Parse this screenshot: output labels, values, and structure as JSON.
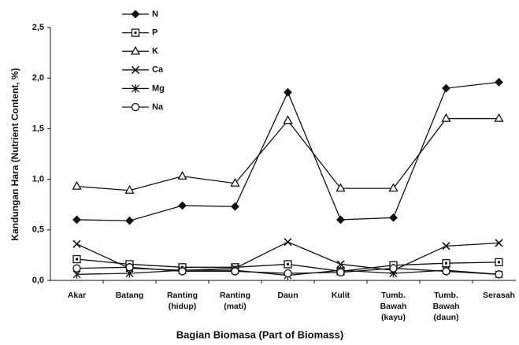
{
  "chart_data": {
    "type": "line",
    "x_label": "Bagian Biomasa (Part of Biomass)",
    "y_label": "Kandungan Hara (Nutrient Content, %)",
    "categories": [
      "Akar",
      "Batang",
      "Ranting\n(hidup)",
      "Ranting\n(mati)",
      "Daun",
      "Kulit",
      "Tumb.\nBawah\n(kayu)",
      "Tumb.\nBawah\n(daun)",
      "Serasah"
    ],
    "series": [
      {
        "name": "N",
        "color": "#111111",
        "marker": "diamond",
        "values": [
          0.6,
          0.59,
          0.74,
          0.73,
          1.86,
          0.6,
          0.62,
          1.9,
          1.96
        ]
      },
      {
        "name": "P",
        "color": "#111111",
        "marker": "square",
        "values": [
          0.21,
          0.16,
          0.13,
          0.13,
          0.16,
          0.09,
          0.15,
          0.17,
          0.18
        ]
      },
      {
        "name": "K",
        "color": "#111111",
        "marker": "triangle",
        "values": [
          0.93,
          0.89,
          1.03,
          0.96,
          1.58,
          0.91,
          0.91,
          1.6,
          1.6
        ]
      },
      {
        "name": "Ca",
        "color": "#111111",
        "marker": "x",
        "values": [
          0.36,
          0.12,
          0.1,
          0.12,
          0.38,
          0.16,
          0.1,
          0.34,
          0.37
        ]
      },
      {
        "name": "Mg",
        "color": "#111111",
        "marker": "star",
        "values": [
          0.06,
          0.07,
          0.1,
          0.1,
          0.05,
          0.1,
          0.07,
          0.1,
          0.06
        ]
      },
      {
        "name": "Na",
        "color": "#111111",
        "marker": "circle",
        "values": [
          0.12,
          0.13,
          0.09,
          0.09,
          0.07,
          0.08,
          0.12,
          0.09,
          0.06
        ]
      }
    ],
    "ylim": [
      0,
      2.5
    ],
    "yticks": [
      {
        "value": 0,
        "label": "0,0"
      },
      {
        "value": 0.5,
        "label": "0,5"
      },
      {
        "value": 1,
        "label": "1,0"
      },
      {
        "value": 1.5,
        "label": "1,5"
      },
      {
        "value": 2,
        "label": "2,0"
      },
      {
        "value": 2.5,
        "label": "2,5"
      }
    ],
    "legend": "upper left"
  }
}
